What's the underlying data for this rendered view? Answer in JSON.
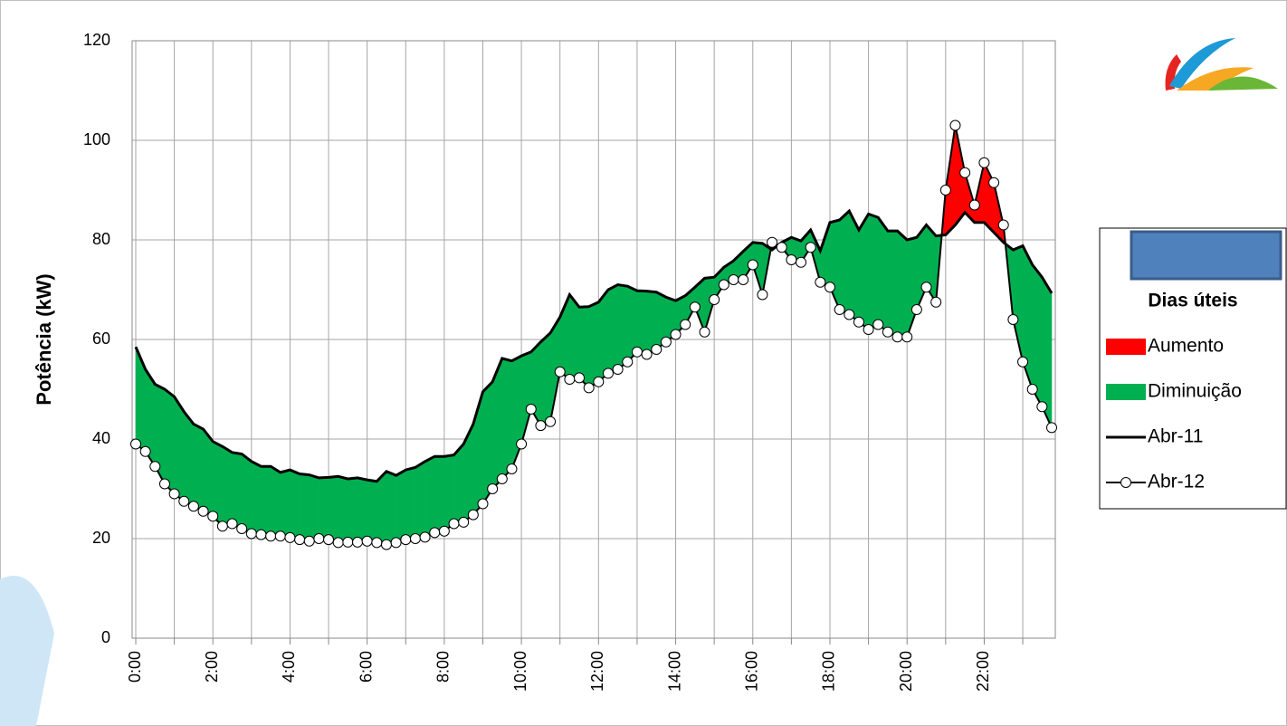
{
  "chart_data": {
    "type": "line",
    "y_label": "Potência (kW)",
    "legend_title": "Dias úteis",
    "x": [
      0,
      0.25,
      0.5,
      0.75,
      1,
      1.25,
      1.5,
      1.75,
      2,
      2.25,
      2.5,
      2.75,
      3,
      3.25,
      3.5,
      3.75,
      4,
      4.25,
      4.5,
      4.75,
      5,
      5.25,
      5.5,
      5.75,
      6,
      6.25,
      6.5,
      6.75,
      7,
      7.25,
      7.5,
      7.75,
      8,
      8.25,
      8.5,
      8.75,
      9,
      9.25,
      9.5,
      9.75,
      10,
      10.25,
      10.5,
      10.75,
      11,
      11.25,
      11.5,
      11.75,
      12,
      12.25,
      12.5,
      12.75,
      13,
      13.25,
      13.5,
      13.75,
      14,
      14.25,
      14.5,
      14.75,
      15,
      15.25,
      15.5,
      15.75,
      16,
      16.25,
      16.5,
      16.75,
      17,
      17.25,
      17.5,
      17.75,
      18,
      18.25,
      18.5,
      18.75,
      19,
      19.25,
      19.5,
      19.75,
      20,
      20.25,
      20.5,
      20.75,
      21,
      21.25,
      21.5,
      21.75,
      22,
      22.25,
      22.5,
      22.75,
      23,
      23.25,
      23.5,
      23.75
    ],
    "xlim": [
      0,
      23.75
    ],
    "xticks": [
      {
        "value": 0,
        "label": "0:00"
      },
      {
        "value": 2,
        "label": "2:00"
      },
      {
        "value": 4,
        "label": "4:00"
      },
      {
        "value": 6,
        "label": "6:00"
      },
      {
        "value": 8,
        "label": "8:00"
      },
      {
        "value": 10,
        "label": "10:00"
      },
      {
        "value": 12,
        "label": "12:00"
      },
      {
        "value": 14,
        "label": "14:00"
      },
      {
        "value": 16,
        "label": "16:00"
      },
      {
        "value": 18,
        "label": "18:00"
      },
      {
        "value": 20,
        "label": "20:00"
      },
      {
        "value": 22,
        "label": "22:00"
      }
    ],
    "ylim": [
      0,
      120
    ],
    "yticks": [
      0,
      20,
      40,
      60,
      80,
      100,
      120
    ],
    "grid": true,
    "fills": [
      {
        "name": "Aumento",
        "color": "#ff0000"
      },
      {
        "name": "Diminuição",
        "color": "#00b050"
      }
    ],
    "series": [
      {
        "name": "Abr-11",
        "color": "#000000",
        "marker": false,
        "values": [
          58.5,
          54,
          51,
          50,
          48.5,
          45.5,
          43,
          42,
          39.5,
          38.5,
          37.3,
          37,
          35.5,
          34.5,
          34.5,
          33.3,
          33.8,
          33,
          32.8,
          32.2,
          32.3,
          32.5,
          32,
          32.2,
          31.8,
          31.5,
          33.5,
          32.7,
          33.8,
          34.3,
          35.5,
          36.5,
          36.5,
          36.8,
          39,
          43,
          49.5,
          51.5,
          56.2,
          55.7,
          56.7,
          57.5,
          59.5,
          61.3,
          64.5,
          69,
          66.5,
          66.6,
          67.5,
          70,
          71,
          70.7,
          69.8,
          69.7,
          69.5,
          68.5,
          67.8,
          68.8,
          70.5,
          72.3,
          72.5,
          74.5,
          75.8,
          77.7,
          79.5,
          79.3,
          78,
          79.5,
          80.5,
          79.8,
          82,
          77.8,
          83.5,
          84,
          85.8,
          82,
          85.2,
          84.5,
          81.8,
          81.8,
          80,
          80.5,
          83,
          80.8,
          81,
          83,
          85.5,
          83.5,
          83.5,
          81.5,
          79.5,
          78,
          78.8,
          75,
          72.5,
          69.3
        ]
      },
      {
        "name": "Abr-12",
        "color": "#000000",
        "marker": true,
        "values": [
          39,
          37.5,
          34.5,
          31,
          29,
          27.5,
          26.5,
          25.5,
          24.5,
          22.5,
          23,
          22,
          21,
          20.8,
          20.5,
          20.5,
          20.2,
          19.8,
          19.5,
          20,
          19.8,
          19.2,
          19.3,
          19.3,
          19.5,
          19.2,
          18.8,
          19.2,
          19.8,
          20,
          20.3,
          21.2,
          21.5,
          23,
          23.3,
          24.8,
          27,
          30,
          32,
          34,
          39,
          46,
          42.7,
          43.5,
          53.5,
          52,
          52.3,
          50.3,
          51.5,
          53.2,
          54,
          55.5,
          57.5,
          57,
          58,
          59.5,
          61,
          63,
          66.5,
          61.5,
          68,
          71,
          72,
          72,
          75,
          69,
          79.5,
          78.5,
          76,
          75.5,
          78.5,
          71.5,
          70.5,
          66,
          65,
          63.5,
          62,
          63,
          61.5,
          60.5,
          60.5,
          66,
          70.5,
          67.5,
          90,
          103,
          93.5,
          87,
          95.5,
          91.5,
          83,
          64,
          55.5,
          50,
          46.5,
          42.3
        ]
      }
    ]
  }
}
